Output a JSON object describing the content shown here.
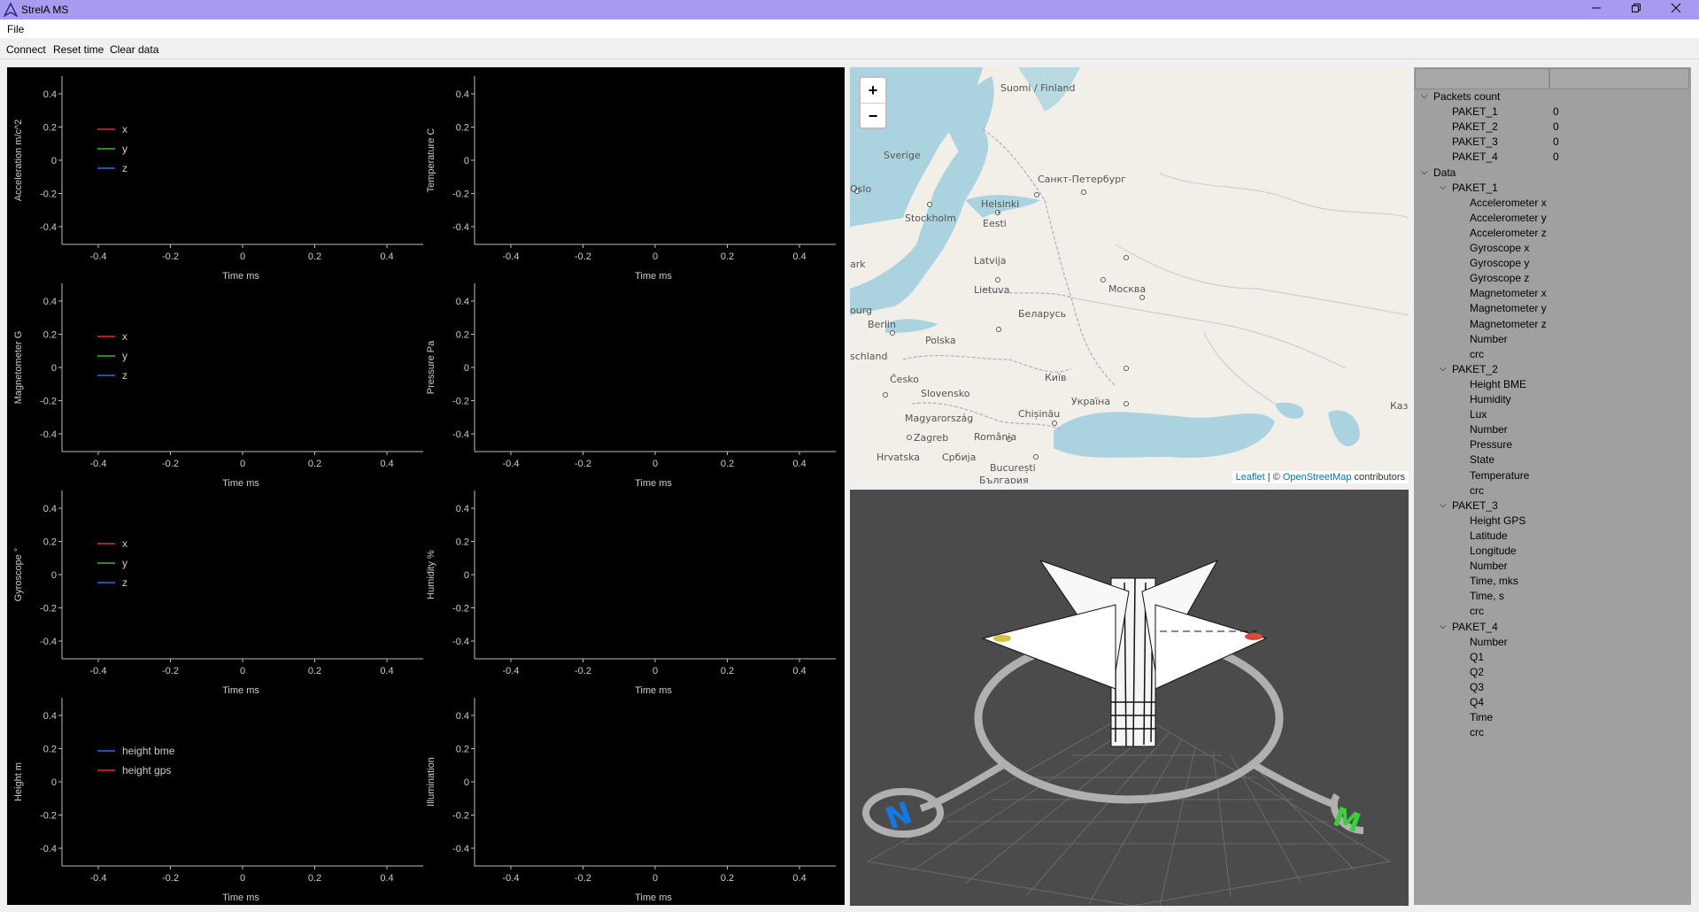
{
  "window": {
    "title": "StrelA MS"
  },
  "menu": {
    "file": "File"
  },
  "toolbar": {
    "connect": "Connect",
    "reset_time": "Reset time",
    "clear_data": "Clear data"
  },
  "plots": {
    "xticks": [
      "-0.4",
      "-0.2",
      "0",
      "0.2",
      "0.4"
    ],
    "yticks": [
      "0.4",
      "0.2",
      "0",
      "-0.2",
      "-0.4"
    ],
    "xlabel": "Time ms",
    "left": [
      {
        "ylabel": "Acceleration m/c^2",
        "legend": [
          {
            "name": "x",
            "color": "#e03030"
          },
          {
            "name": "y",
            "color": "#30c030"
          },
          {
            "name": "z",
            "color": "#3070e0"
          }
        ]
      },
      {
        "ylabel": "Magnetometer G",
        "legend": [
          {
            "name": "x",
            "color": "#e03030"
          },
          {
            "name": "y",
            "color": "#30c030"
          },
          {
            "name": "z",
            "color": "#3070e0"
          }
        ]
      },
      {
        "ylabel": "Gyroscope °",
        "legend": [
          {
            "name": "x",
            "color": "#e03030"
          },
          {
            "name": "y",
            "color": "#30c030"
          },
          {
            "name": "z",
            "color": "#3070e0"
          }
        ]
      },
      {
        "ylabel": "Height m",
        "legend": [
          {
            "name": "height bme",
            "color": "#3070e0"
          },
          {
            "name": "height gps",
            "color": "#e03030"
          }
        ]
      }
    ],
    "right": [
      {
        "ylabel": "Temperature C"
      },
      {
        "ylabel": "Pressure Pa"
      },
      {
        "ylabel": "Humidity %"
      },
      {
        "ylabel": "Illumination"
      }
    ]
  },
  "map": {
    "zoom_in": "+",
    "zoom_out": "−",
    "attribution": {
      "leaflet": "Leaflet",
      "sep": " | © ",
      "osm": "OpenStreetMap",
      "contributors": " contributors"
    },
    "labels": [
      "Suomi / Finland",
      "Sverige",
      "Oslo",
      "Helsinki",
      "Санкт-Петербург",
      "Stockholm",
      "Eesti",
      "Latvija",
      "Lietuva",
      "Москва",
      "Беларусь",
      "Berlin",
      "Polska",
      "Київ",
      "Česko",
      "Slovensko",
      "Україна",
      "Magyarország",
      "Chișinău",
      "România",
      "Zagreb",
      "Hrvatska",
      "Србија",
      "București",
      "България",
      "Каз",
      "ark",
      "ourg",
      "schland"
    ]
  },
  "tree": {
    "sections": [
      {
        "label": "Packets count",
        "rows": [
          {
            "label": "PAKET_1",
            "value": "0"
          },
          {
            "label": "PAKET_2",
            "value": "0"
          },
          {
            "label": "PAKET_3",
            "value": "0"
          },
          {
            "label": "PAKET_4",
            "value": "0"
          }
        ]
      },
      {
        "label": "Data",
        "groups": [
          {
            "label": "PAKET_1",
            "items": [
              "Accelerometer x",
              "Accelerometer y",
              "Accelerometer z",
              "Gyroscope x",
              "Gyroscope y",
              "Gyroscope z",
              "Magnetometer x",
              "Magnetometer y",
              "Magnetometer z",
              "Number",
              "crc"
            ]
          },
          {
            "label": "PAKET_2",
            "items": [
              "Height BME",
              "Humidity",
              "Lux",
              "Number",
              "Pressure",
              "State",
              "Temperature",
              "crc"
            ]
          },
          {
            "label": "PAKET_3",
            "items": [
              "Height GPS",
              "Latitude",
              "Longitude",
              "Number",
              "Time, mks",
              "Time, s",
              "crc"
            ]
          },
          {
            "label": "PAKET_4",
            "items": [
              "Number",
              "Q1",
              "Q2",
              "Q3",
              "Q4",
              "Time",
              "crc"
            ]
          }
        ]
      }
    ]
  }
}
